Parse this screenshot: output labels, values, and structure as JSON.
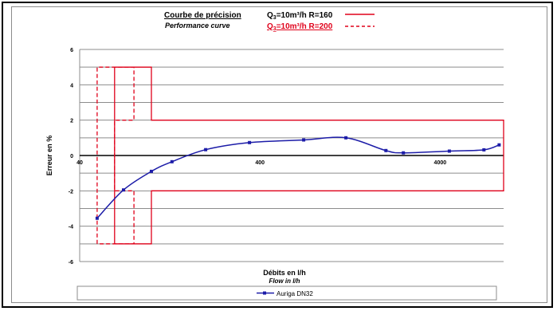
{
  "header": {
    "title_fr": "Courbe de précision",
    "title_en": "Performance curve",
    "legend_solid": "Q3=10m³/h R=160",
    "legend_dashed": "Q3=10m³/h R=200"
  },
  "colors": {
    "envelope": "#e0001a",
    "series": "#1c1ca8",
    "zero_line": "#000000",
    "grid": "#8c8c8c"
  },
  "chart_data": {
    "type": "line",
    "xscale": "log",
    "xlim": [
      40,
      9000
    ],
    "ylim": [
      -6,
      6
    ],
    "xticks": [
      40,
      400,
      4000
    ],
    "yticks": [
      -6,
      -4,
      -2,
      0,
      2,
      4,
      6
    ],
    "xlabel": "Débits en l/h",
    "xlabel_en": "Flow in l/h",
    "ylabel": "Erreur en %",
    "grid": true,
    "legend_position": "bottom",
    "series": [
      {
        "name": "Auriga DN32",
        "x": [
          50,
          70,
          100,
          130,
          200,
          350,
          700,
          1200,
          2000,
          2500,
          4500,
          7000,
          8500
        ],
        "y": [
          -3.55,
          -1.95,
          -0.9,
          -0.35,
          0.33,
          0.73,
          0.88,
          1.0,
          0.28,
          0.15,
          0.25,
          0.32,
          0.6
        ]
      }
    ],
    "envelopes": [
      {
        "name": "Q3=10m³/h R=160",
        "style": "solid",
        "x": [
          62.5,
          62.5,
          100,
          100,
          9000,
          9000,
          100,
          100,
          62.5
        ],
        "y": [
          -5,
          5,
          5,
          2,
          2,
          -2,
          -2,
          -5,
          -5
        ]
      },
      {
        "name": "Q3=10m³/h R=200",
        "style": "dashed",
        "x": [
          50,
          50,
          80,
          80,
          62.5,
          62.5,
          80,
          80,
          50
        ],
        "y": [
          -5,
          5,
          5,
          2,
          2,
          -2,
          -2,
          -5,
          -5
        ]
      }
    ]
  }
}
